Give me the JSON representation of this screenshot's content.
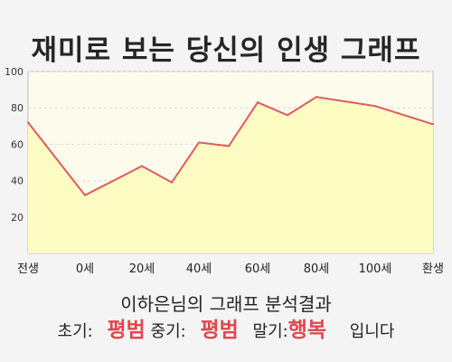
{
  "header": {
    "title": "재미로 보는 당신의 인생 그래프"
  },
  "colors": {
    "line": "#e05a60",
    "fill": "#fdfcc2",
    "plot_bg": "#fdfcec",
    "accent": "#e0474e"
  },
  "chart_data": {
    "type": "area",
    "title": "재미로 보는 당신의 인생 그래프",
    "xlabel": "",
    "ylabel": "",
    "x_tick_labels": [
      "전생",
      "0세",
      "20세",
      "40세",
      "60세",
      "80세",
      "100세",
      "환생"
    ],
    "y_ticks": [
      "20",
      "40",
      "60",
      "80",
      "100"
    ],
    "ylim": [
      0,
      100
    ],
    "grid": true,
    "series": [
      {
        "x": [
          "전생",
          "0세",
          "20세",
          "30세",
          "40세",
          "50세",
          "60세",
          "70세",
          "80세",
          "100세",
          "환생"
        ],
        "values": [
          72,
          32,
          48,
          39,
          61,
          59,
          83,
          76,
          86,
          81,
          71
        ]
      }
    ]
  },
  "result": {
    "title": "이하은님의 그래프 분석결과",
    "early_label": "초기:",
    "early_value": "평범",
    "middle_label": "중기:",
    "middle_value": "평범",
    "late_label": "말기:",
    "late_value": "행복",
    "suffix": "입니다"
  }
}
